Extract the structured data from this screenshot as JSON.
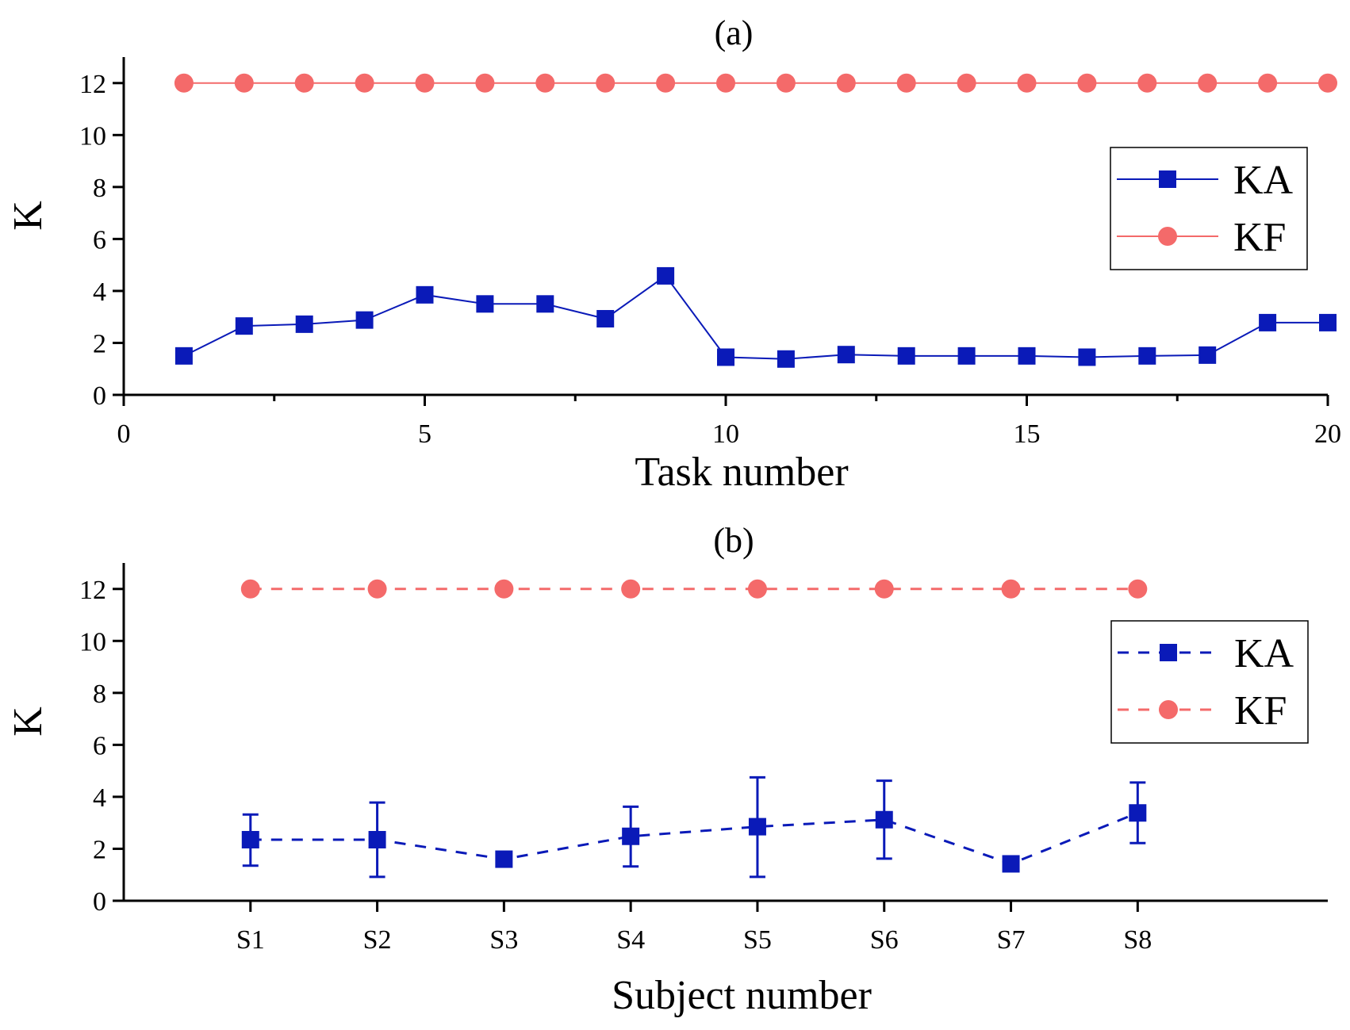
{
  "chart_data": [
    {
      "type": "line",
      "title": "(a)",
      "xlabel": "Task number",
      "ylabel": "K",
      "xlim": [
        0,
        20
      ],
      "ylim": [
        0,
        13
      ],
      "xticks": [
        0,
        5,
        10,
        15,
        20
      ],
      "xticks_minor": [
        2.5,
        7.5,
        12.5,
        17.5
      ],
      "yticks": [
        0,
        2,
        4,
        6,
        8,
        10,
        12
      ],
      "legend_position": "right",
      "series": [
        {
          "name": "KA",
          "color": "#0a1ab8",
          "marker": "square",
          "line": "solid",
          "x": [
            1,
            2,
            3,
            4,
            5,
            6,
            7,
            8,
            9,
            10,
            11,
            12,
            13,
            14,
            15,
            16,
            17,
            18,
            19,
            20
          ],
          "values": [
            1.5,
            2.65,
            2.72,
            2.88,
            3.85,
            3.5,
            3.5,
            2.93,
            4.58,
            1.45,
            1.38,
            1.55,
            1.5,
            1.5,
            1.5,
            1.45,
            1.5,
            1.53,
            2.78,
            2.78
          ]
        },
        {
          "name": "KF",
          "color": "#f46a6a",
          "marker": "circle",
          "line": "solid",
          "x": [
            1,
            2,
            3,
            4,
            5,
            6,
            7,
            8,
            9,
            10,
            11,
            12,
            13,
            14,
            15,
            16,
            17,
            18,
            19,
            20
          ],
          "values": [
            12,
            12,
            12,
            12,
            12,
            12,
            12,
            12,
            12,
            12,
            12,
            12,
            12,
            12,
            12,
            12,
            12,
            12,
            12,
            12
          ]
        }
      ]
    },
    {
      "type": "line",
      "title": "(b)",
      "xlabel": "Subject number",
      "ylabel": "K",
      "xlim": [
        0,
        9.5
      ],
      "ylim": [
        0,
        13
      ],
      "categories": [
        "S1",
        "S2",
        "S3",
        "S4",
        "S5",
        "S6",
        "S7",
        "S8"
      ],
      "yticks": [
        0,
        2,
        4,
        6,
        8,
        10,
        12
      ],
      "legend_position": "right",
      "series": [
        {
          "name": "KA",
          "color": "#0a1ab8",
          "marker": "square",
          "line": "dashed",
          "values": [
            2.35,
            2.35,
            1.6,
            2.48,
            2.85,
            3.12,
            1.42,
            3.38
          ],
          "error_low": [
            1.35,
            0.92,
            1.5,
            1.32,
            0.92,
            1.62,
            1.35,
            2.22
          ],
          "error_high": [
            3.32,
            3.78,
            1.7,
            3.62,
            4.75,
            4.62,
            1.5,
            4.55
          ]
        },
        {
          "name": "KF",
          "color": "#f46a6a",
          "marker": "circle",
          "line": "dashed",
          "values": [
            12,
            12,
            12,
            12,
            12,
            12,
            12,
            12
          ]
        }
      ]
    }
  ]
}
